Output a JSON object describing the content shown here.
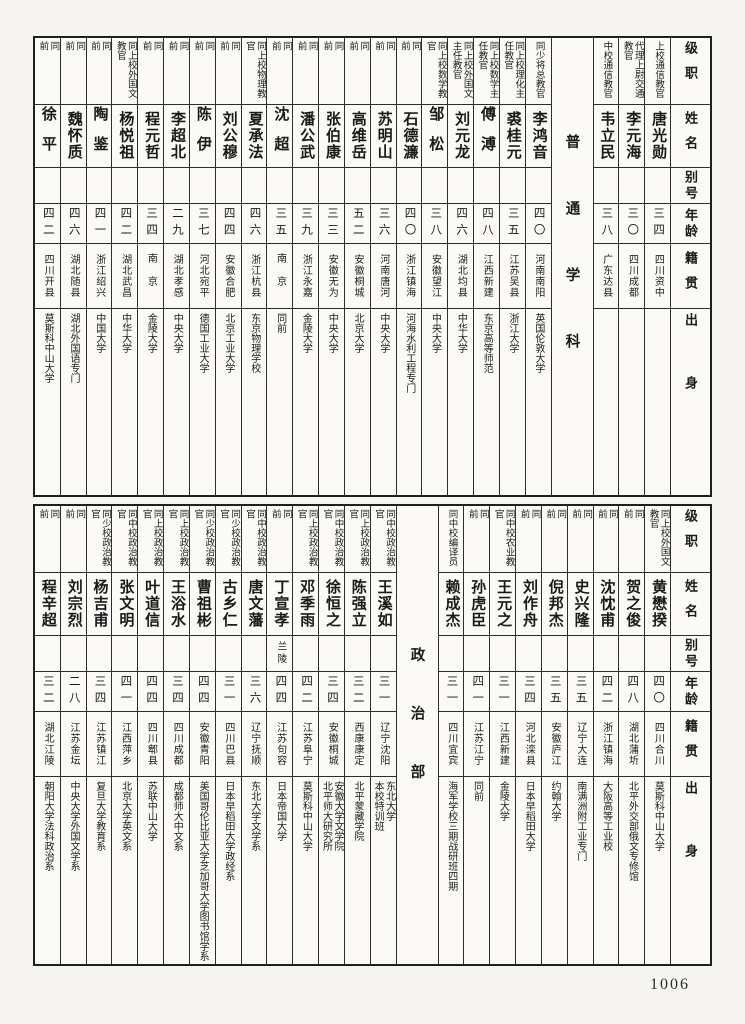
{
  "page_number": "1006",
  "headers": {
    "rank": "级职",
    "name": "姓名",
    "alias": "别号",
    "age": "年龄",
    "native": "籍贯",
    "origin": "出身"
  },
  "tables": [
    {
      "name": "top-table",
      "columns": [
        {
          "kind": "header"
        },
        {
          "kind": "person",
          "rank": "上校通信教官",
          "name": "唐光勋",
          "alias": "",
          "age": "三四",
          "native": "四川资中",
          "origin": ""
        },
        {
          "kind": "person",
          "rank": "代理上尉交通教官",
          "name": "李元海",
          "alias": "",
          "age": "三〇",
          "native": "四川成都",
          "origin": ""
        },
        {
          "kind": "person",
          "rank": "中校通信教官",
          "name": "韦立民",
          "alias": "",
          "age": "三八",
          "native": "广东达县",
          "origin": ""
        },
        {
          "kind": "section",
          "label": "普通学科"
        },
        {
          "kind": "person",
          "rank": "同少将总教官",
          "name": "李鸿音",
          "alias": "",
          "age": "四〇",
          "native": "河南南阳",
          "origin": "英国伦敦大学"
        },
        {
          "kind": "person",
          "rank": "同上校理化主任教官",
          "name": "裘桂元",
          "alias": "",
          "age": "三五",
          "native": "江苏吴县",
          "origin": "浙江大学"
        },
        {
          "kind": "person",
          "rank": "同上校数学主任教官",
          "name": "傅溥",
          "alias": "",
          "age": "四八",
          "native": "江西新建",
          "origin": "东京高等师范"
        },
        {
          "kind": "person",
          "rank": "同上校外国文主任教官",
          "name": "刘元龙",
          "alias": "",
          "age": "四六",
          "native": "湖北均县",
          "origin": "中华大学"
        },
        {
          "kind": "person",
          "rank": "同上校数学教官",
          "name": "邹松",
          "alias": "",
          "age": "三八",
          "native": "安徽望江",
          "origin": "中央大学"
        },
        {
          "kind": "person",
          "rank": "同前",
          "name": "石德濂",
          "alias": "",
          "age": "四〇",
          "native": "浙江镇海",
          "origin": "河海水利工程专门"
        },
        {
          "kind": "person",
          "rank": "同前",
          "name": "苏明山",
          "alias": "",
          "age": "三六",
          "native": "河南唐河",
          "origin": "中央大学"
        },
        {
          "kind": "person",
          "rank": "同前",
          "name": "高维岳",
          "alias": "",
          "age": "五二",
          "native": "安徽桐城",
          "origin": "北京大学"
        },
        {
          "kind": "person",
          "rank": "同前",
          "name": "张伯康",
          "alias": "",
          "age": "三三",
          "native": "安徽无为",
          "origin": "中央大学"
        },
        {
          "kind": "person",
          "rank": "同前",
          "name": "潘公武",
          "alias": "",
          "age": "三九",
          "native": "浙江永嘉",
          "origin": "金陵大学"
        },
        {
          "kind": "person",
          "rank": "同前",
          "name": "沈超",
          "alias": "",
          "age": "三五",
          "native": "南京",
          "origin": "同前"
        },
        {
          "kind": "person",
          "rank": "同上校物理教官",
          "name": "夏承法",
          "alias": "",
          "age": "四六",
          "native": "浙江杭县",
          "origin": "东京物理学校"
        },
        {
          "kind": "person",
          "rank": "同前",
          "name": "刘公穆",
          "alias": "",
          "age": "四四",
          "native": "安徽合肥",
          "origin": "北京工业大学"
        },
        {
          "kind": "person",
          "rank": "同前",
          "name": "陈伊",
          "alias": "",
          "age": "三七",
          "native": "河北宛平",
          "origin": "德国工业大学"
        },
        {
          "kind": "person",
          "rank": "同前",
          "name": "李超北",
          "alias": "",
          "age": "二九",
          "native": "湖北孝感",
          "origin": "中央大学"
        },
        {
          "kind": "person",
          "rank": "同前",
          "name": "程元哲",
          "alias": "",
          "age": "三四",
          "native": "南京",
          "origin": "金陵大学"
        },
        {
          "kind": "person",
          "rank": "同上校外国文教官",
          "name": "杨悦祖",
          "alias": "",
          "age": "四二",
          "native": "湖北武昌",
          "origin": "中华大学"
        },
        {
          "kind": "person",
          "rank": "同前",
          "name": "陶鉴",
          "alias": "",
          "age": "四一",
          "native": "浙江绍兴",
          "origin": "中国大学"
        },
        {
          "kind": "person",
          "rank": "同前",
          "name": "魏怀质",
          "alias": "",
          "age": "四六",
          "native": "湖北随县",
          "origin": "湖北外国语专门"
        },
        {
          "kind": "person",
          "rank": "同前",
          "name": "徐平",
          "alias": "",
          "age": "四二",
          "native": "四川开县",
          "origin": "莫斯科中山大学"
        }
      ]
    },
    {
      "name": "bottom-table",
      "columns": [
        {
          "kind": "header"
        },
        {
          "kind": "person",
          "rank": "同上校外国文教官",
          "name": "黄懋揆",
          "alias": "",
          "age": "四〇",
          "native": "四川合川",
          "origin": "莫斯科中山大学"
        },
        {
          "kind": "person",
          "rank": "同前",
          "name": "贺之俊",
          "alias": "",
          "age": "四八",
          "native": "湖北蒲圻",
          "origin": "北平外交部俄文专修馆"
        },
        {
          "kind": "person",
          "rank": "同前",
          "name": "沈忱甫",
          "alias": "",
          "age": "四二",
          "native": "浙江镇海",
          "origin": "大阪高等工业校"
        },
        {
          "kind": "person",
          "rank": "同前",
          "name": "史兴隆",
          "alias": "",
          "age": "三五",
          "native": "辽宁大连",
          "origin": "南满洲附工业专门"
        },
        {
          "kind": "person",
          "rank": "同前",
          "name": "倪邦杰",
          "alias": "",
          "age": "三五",
          "native": "安徽庐江",
          "origin": "约翰大学"
        },
        {
          "kind": "person",
          "rank": "同前",
          "name": "刘作舟",
          "alias": "",
          "age": "三四",
          "native": "河北滦县",
          "origin": "日本早稻田大学"
        },
        {
          "kind": "person",
          "rank": "同中校农业教官",
          "name": "王元之",
          "alias": "",
          "age": "三一",
          "native": "江西新建",
          "origin": "金陵大学"
        },
        {
          "kind": "person",
          "rank": "同前",
          "name": "孙虎臣",
          "alias": "",
          "age": "四一",
          "native": "江苏江宁",
          "origin": "同前"
        },
        {
          "kind": "person",
          "rank": "同中校编译员",
          "name": "赖成杰",
          "alias": "",
          "age": "三一",
          "native": "四川宜宾",
          "origin": "海军学校三期战研班四期"
        },
        {
          "kind": "section",
          "label": "政治部"
        },
        {
          "kind": "person",
          "rank": "同中校政治教官",
          "name": "王溪如",
          "alias": "",
          "age": "三一",
          "native": "辽宁沈阳",
          "origin": "东北大学\n本校特训班"
        },
        {
          "kind": "person",
          "rank": "同上校政治教官",
          "name": "陈强立",
          "alias": "",
          "age": "三二",
          "native": "西康康定",
          "origin": "北平蒙藏学院"
        },
        {
          "kind": "person",
          "rank": "同中校政治教官",
          "name": "徐恒之",
          "alias": "",
          "age": "三四",
          "native": "安徽桐城",
          "origin": "安徽大学文学院\n北平师大研究所"
        },
        {
          "kind": "person",
          "rank": "同上校政治教官",
          "name": "邓季雨",
          "alias": "",
          "age": "四二",
          "native": "江苏阜宁",
          "origin": "莫斯科中山大学"
        },
        {
          "kind": "person",
          "rank": "同前",
          "name": "丁宣孝",
          "alias": "兰陵",
          "age": "四四",
          "native": "江苏句容",
          "origin": "日本帝国大学"
        },
        {
          "kind": "person",
          "rank": "同中校政治教官",
          "name": "唐文藩",
          "alias": "",
          "age": "三六",
          "native": "辽宁抚顺",
          "origin": "东北大学文学系"
        },
        {
          "kind": "person",
          "rank": "同少校政治教官",
          "name": "古乡仁",
          "alias": "",
          "age": "三一",
          "native": "四川巴县",
          "origin": "日本早稻田大学政经系"
        },
        {
          "kind": "person",
          "rank": "同少校政治教官",
          "name": "曹祖彬",
          "alias": "",
          "age": "四四",
          "native": "安徽青阳",
          "origin": "美国哥伦比亚大学芝加哥大学图书馆学系"
        },
        {
          "kind": "person",
          "rank": "同上校政治教官",
          "name": "王浴水",
          "alias": "",
          "age": "三四",
          "native": "四川成都",
          "origin": "成都师大中文系"
        },
        {
          "kind": "person",
          "rank": "同上校政治教官",
          "name": "叶道信",
          "alias": "",
          "age": "四四",
          "native": "四川郫县",
          "origin": "苏联中山大学"
        },
        {
          "kind": "person",
          "rank": "同中校政治教官",
          "name": "张文明",
          "alias": "",
          "age": "四一",
          "native": "江西萍乡",
          "origin": "北京大学英文系"
        },
        {
          "kind": "person",
          "rank": "同少校政治教官",
          "name": "杨吉甫",
          "alias": "",
          "age": "三四",
          "native": "江苏镇江",
          "origin": "复旦大学教育系"
        },
        {
          "kind": "person",
          "rank": "同前",
          "name": "刘宗烈",
          "alias": "",
          "age": "二八",
          "native": "江苏金坛",
          "origin": "中央大学外国文学系"
        },
        {
          "kind": "person",
          "rank": "同前",
          "name": "程辛超",
          "alias": "",
          "age": "三二",
          "native": "湖北江陵",
          "origin": "朝阳大学法科政治系"
        }
      ]
    }
  ]
}
